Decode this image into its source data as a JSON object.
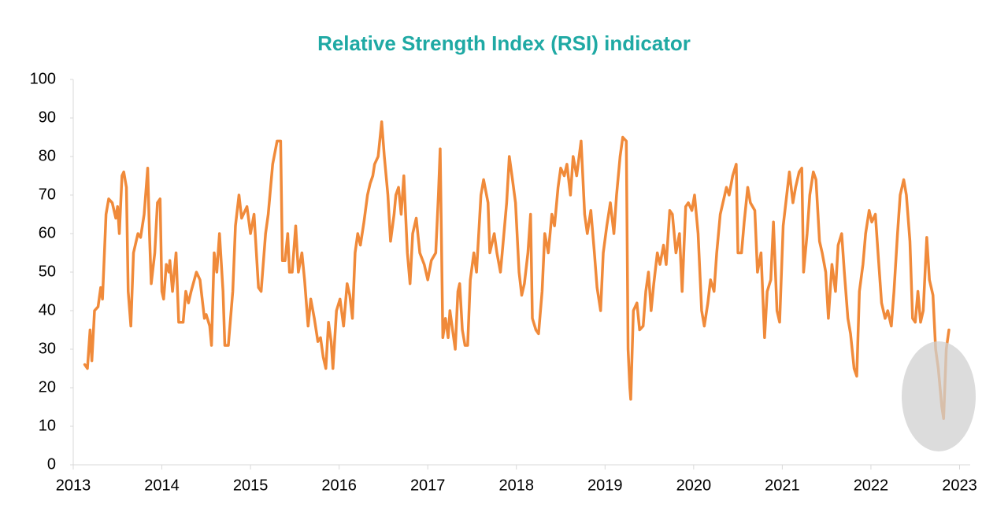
{
  "chart_data": {
    "type": "line",
    "title": "Relative Strength Index (RSI) indicator",
    "x": [
      2013.13,
      2013.16,
      2013.19,
      2013.21,
      2013.24,
      2013.28,
      2013.31,
      2013.33,
      2013.37,
      2013.4,
      2013.44,
      2013.48,
      2013.5,
      2013.52,
      2013.55,
      2013.57,
      2013.6,
      2013.62,
      2013.65,
      2013.68,
      2013.73,
      2013.76,
      2013.8,
      2013.84,
      2013.86,
      2013.88,
      2013.92,
      2013.95,
      2013.98,
      2014.0,
      2014.02,
      2014.05,
      2014.08,
      2014.09,
      2014.12,
      2014.16,
      2014.19,
      2014.24,
      2014.27,
      2014.3,
      2014.33,
      2014.39,
      2014.43,
      2014.48,
      2014.5,
      2014.54,
      2014.56,
      2014.59,
      2014.62,
      2014.65,
      2014.69,
      2014.71,
      2014.75,
      2014.8,
      2014.83,
      2014.87,
      2014.9,
      2014.96,
      2015.0,
      2015.04,
      2015.09,
      2015.12,
      2015.17,
      2015.2,
      2015.25,
      2015.3,
      2015.34,
      2015.36,
      2015.39,
      2015.42,
      2015.44,
      2015.47,
      2015.51,
      2015.54,
      2015.58,
      2015.61,
      2015.65,
      2015.68,
      2015.72,
      2015.76,
      2015.79,
      2015.82,
      2015.85,
      2015.88,
      2015.91,
      2015.93,
      2015.97,
      2016.01,
      2016.05,
      2016.09,
      2016.12,
      2016.15,
      2016.18,
      2016.21,
      2016.24,
      2016.28,
      2016.32,
      2016.35,
      2016.38,
      2016.4,
      2016.44,
      2016.48,
      2016.51,
      2016.55,
      2016.58,
      2016.62,
      2016.64,
      2016.67,
      2016.7,
      2016.73,
      2016.77,
      2016.8,
      2016.83,
      2016.87,
      2016.91,
      2016.96,
      2017.0,
      2017.04,
      2017.09,
      2017.12,
      2017.14,
      2017.17,
      2017.2,
      2017.23,
      2017.25,
      2017.28,
      2017.31,
      2017.34,
      2017.36,
      2017.39,
      2017.42,
      2017.45,
      2017.48,
      2017.52,
      2017.55,
      2017.6,
      2017.63,
      2017.68,
      2017.7,
      2017.75,
      2017.78,
      2017.82,
      2017.84,
      2017.89,
      2017.92,
      2017.95,
      2017.99,
      2018.03,
      2018.06,
      2018.09,
      2018.13,
      2018.16,
      2018.18,
      2018.22,
      2018.25,
      2018.29,
      2018.32,
      2018.36,
      2018.4,
      2018.43,
      2018.47,
      2018.5,
      2018.54,
      2018.57,
      2018.61,
      2018.64,
      2018.68,
      2018.73,
      2018.77,
      2018.8,
      2018.84,
      2018.88,
      2018.91,
      2018.95,
      2018.98,
      2019.02,
      2019.06,
      2019.1,
      2019.13,
      2019.17,
      2019.2,
      2019.24,
      2019.26,
      2019.28,
      2019.29,
      2019.32,
      2019.36,
      2019.39,
      2019.43,
      2019.46,
      2019.49,
      2019.52,
      2019.55,
      2019.59,
      2019.62,
      2019.66,
      2019.69,
      2019.73,
      2019.76,
      2019.8,
      2019.84,
      2019.87,
      2019.91,
      2019.94,
      2019.98,
      2020.01,
      2020.05,
      2020.09,
      2020.12,
      2020.16,
      2020.19,
      2020.23,
      2020.26,
      2020.3,
      2020.33,
      2020.37,
      2020.4,
      2020.44,
      2020.48,
      2020.5,
      2020.54,
      2020.57,
      2020.61,
      2020.64,
      2020.69,
      2020.72,
      2020.76,
      2020.8,
      2020.83,
      2020.87,
      2020.9,
      2020.94,
      2020.97,
      2021.01,
      2021.04,
      2021.08,
      2021.12,
      2021.15,
      2021.19,
      2021.22,
      2021.24,
      2021.28,
      2021.31,
      2021.35,
      2021.38,
      2021.42,
      2021.45,
      2021.49,
      2021.52,
      2021.56,
      2021.6,
      2021.63,
      2021.67,
      2021.7,
      2021.74,
      2021.77,
      2021.81,
      2021.84,
      2021.87,
      2021.91,
      2021.94,
      2021.98,
      2022.01,
      2022.05,
      2022.08,
      2022.12,
      2022.16,
      2022.19,
      2022.23,
      2022.26,
      2022.3,
      2022.33,
      2022.37,
      2022.4,
      2022.44,
      2022.47,
      2022.5,
      2022.53,
      2022.56,
      2022.59,
      2022.63,
      2022.66,
      2022.7,
      2022.73,
      2022.76,
      2022.8,
      2022.82,
      2022.85,
      2022.88
    ],
    "series": [
      {
        "name": "RSI",
        "color": "#f08a3a",
        "values": [
          26,
          25,
          35,
          27,
          40,
          41,
          46,
          43,
          65,
          69,
          68,
          64,
          67,
          60,
          75,
          76,
          72,
          45,
          36,
          55,
          60,
          59,
          65,
          77,
          60,
          47,
          55,
          68,
          69,
          45,
          43,
          52,
          50,
          53,
          45,
          55,
          37,
          37,
          45,
          42,
          45,
          50,
          48,
          38,
          39,
          36,
          31,
          55,
          50,
          60,
          45,
          31,
          31,
          45,
          62,
          70,
          64,
          67,
          60,
          65,
          46,
          45,
          60,
          65,
          78,
          84,
          84,
          53,
          53,
          60,
          50,
          50,
          62,
          50,
          55,
          48,
          36,
          43,
          38,
          32,
          33,
          28,
          25,
          37,
          32,
          25,
          40,
          43,
          36,
          47,
          44,
          38,
          55,
          60,
          57,
          63,
          70,
          73,
          75,
          78,
          80,
          89,
          80,
          70,
          58,
          65,
          70,
          72,
          65,
          75,
          55,
          47,
          60,
          64,
          55,
          52,
          48,
          53,
          55,
          70,
          82,
          33,
          38,
          33,
          40,
          35,
          30,
          45,
          47,
          35,
          31,
          31,
          48,
          55,
          50,
          70,
          74,
          68,
          55,
          60,
          55,
          50,
          55,
          68,
          80,
          75,
          68,
          50,
          44,
          47,
          55,
          65,
          38,
          35,
          34,
          45,
          60,
          55,
          65,
          62,
          72,
          77,
          75,
          78,
          70,
          80,
          75,
          84,
          65,
          60,
          66,
          55,
          46,
          40,
          55,
          62,
          68,
          60,
          70,
          80,
          85,
          84,
          30,
          20,
          17,
          40,
          42,
          35,
          36,
          45,
          50,
          40,
          47,
          55,
          52,
          57,
          52,
          66,
          65,
          55,
          60,
          45,
          67,
          68,
          66,
          70,
          60,
          40,
          36,
          42,
          48,
          45,
          55,
          65,
          68,
          72,
          70,
          75,
          78,
          55,
          55,
          63,
          72,
          68,
          66,
          50,
          55,
          33,
          45,
          48,
          63,
          40,
          37,
          62,
          68,
          76,
          68,
          72,
          76,
          77,
          50,
          60,
          70,
          76,
          74,
          58,
          55,
          50,
          38,
          52,
          45,
          57,
          60,
          50,
          38,
          34,
          25,
          23,
          45,
          52,
          60,
          66,
          63,
          65,
          55,
          42,
          38,
          40,
          36,
          45,
          60,
          70,
          74,
          70,
          58,
          38,
          37,
          45,
          37,
          40,
          59,
          48,
          44,
          30,
          25,
          15,
          12,
          30,
          35
        ]
      }
    ],
    "xlim": [
      2013,
      2023.12
    ],
    "xticks": [
      2013,
      2014,
      2015,
      2016,
      2017,
      2018,
      2019,
      2020,
      2021,
      2022,
      2023
    ],
    "ylim": [
      0,
      100
    ],
    "yticks": [
      0,
      10,
      20,
      30,
      40,
      50,
      60,
      70,
      80,
      90,
      100
    ]
  }
}
